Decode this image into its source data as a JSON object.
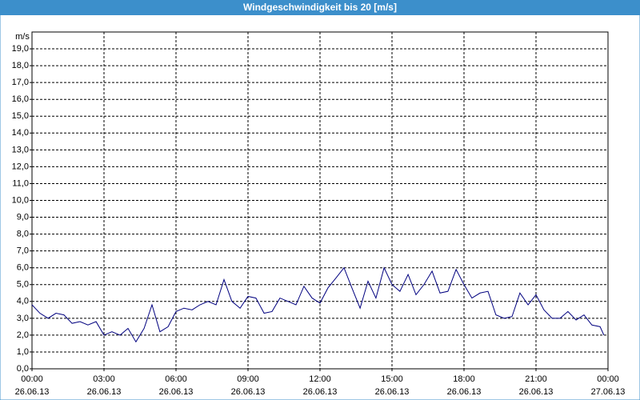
{
  "chart_data": {
    "type": "line",
    "title": "Windgeschwindigkeit bis 20 [m/s]",
    "y_label": "m/s",
    "x": [
      0,
      0.33,
      0.67,
      1,
      1.33,
      1.67,
      2,
      2.33,
      2.67,
      3,
      3.33,
      3.67,
      4,
      4.33,
      4.67,
      5,
      5.33,
      5.67,
      6,
      6.33,
      6.67,
      7,
      7.33,
      7.67,
      8,
      8.33,
      8.67,
      9,
      9.33,
      9.67,
      10,
      10.33,
      10.67,
      11,
      11.33,
      11.67,
      12,
      12.33,
      12.67,
      13,
      13.33,
      13.67,
      14,
      14.33,
      14.67,
      15,
      15.33,
      15.67,
      16,
      16.33,
      16.67,
      17,
      17.33,
      17.67,
      18,
      18.33,
      18.67,
      19,
      19.33,
      19.67,
      20,
      20.33,
      20.67,
      21,
      21.33,
      21.67,
      22,
      22.33,
      22.67,
      23,
      23.33,
      23.67,
      23.83
    ],
    "series": [
      {
        "name": "Windgeschwindigkeit",
        "color": "#00007f",
        "values": [
          3.8,
          3.3,
          3.0,
          3.3,
          3.2,
          2.7,
          2.8,
          2.6,
          2.8,
          2.0,
          2.2,
          2.0,
          2.4,
          1.6,
          2.4,
          3.8,
          2.2,
          2.5,
          3.4,
          3.6,
          3.5,
          3.8,
          4.0,
          3.8,
          5.3,
          4.0,
          3.6,
          4.3,
          4.2,
          3.3,
          3.4,
          4.2,
          4.0,
          3.8,
          4.9,
          4.2,
          3.9,
          4.8,
          5.4,
          6.0,
          4.8,
          3.6,
          5.2,
          4.2,
          6.0,
          5.0,
          4.6,
          5.6,
          4.4,
          5.0,
          5.8,
          4.5,
          4.6,
          5.9,
          5.0,
          4.2,
          4.5,
          4.6,
          3.2,
          3.0,
          3.1,
          4.5,
          3.8,
          4.4,
          3.5,
          3.0,
          3.0,
          3.4,
          2.9,
          3.2,
          2.6,
          2.5,
          2.0
        ]
      }
    ],
    "xlim": [
      0,
      24
    ],
    "xticks": [
      {
        "value": 0,
        "label": "00:00",
        "date": "26.06.13"
      },
      {
        "value": 3,
        "label": "03:00",
        "date": "26.06.13"
      },
      {
        "value": 6,
        "label": "06:00",
        "date": "26.06.13"
      },
      {
        "value": 9,
        "label": "09:00",
        "date": "26.06.13"
      },
      {
        "value": 12,
        "label": "12:00",
        "date": "26.06.13"
      },
      {
        "value": 15,
        "label": "15:00",
        "date": "26.06.13"
      },
      {
        "value": 18,
        "label": "18:00",
        "date": "26.06.13"
      },
      {
        "value": 21,
        "label": "21:00",
        "date": "26.06.13"
      },
      {
        "value": 24,
        "label": "00:00",
        "date": "27.06.13"
      }
    ],
    "ylim": [
      0,
      20
    ],
    "yticks": [
      {
        "value": 0,
        "label": "0,0"
      },
      {
        "value": 1,
        "label": "1,0"
      },
      {
        "value": 2,
        "label": "2,0"
      },
      {
        "value": 3,
        "label": "3,0"
      },
      {
        "value": 4,
        "label": "4,0"
      },
      {
        "value": 5,
        "label": "5,0"
      },
      {
        "value": 6,
        "label": "6,0"
      },
      {
        "value": 7,
        "label": "7,0"
      },
      {
        "value": 8,
        "label": "8,0"
      },
      {
        "value": 9,
        "label": "9,0"
      },
      {
        "value": 10,
        "label": "10,0"
      },
      {
        "value": 11,
        "label": "11,0"
      },
      {
        "value": 12,
        "label": "12,0"
      },
      {
        "value": 13,
        "label": "13,0"
      },
      {
        "value": 14,
        "label": "14,0"
      },
      {
        "value": 15,
        "label": "15,0"
      },
      {
        "value": 16,
        "label": "16,0"
      },
      {
        "value": 17,
        "label": "17,0"
      },
      {
        "value": 18,
        "label": "18,0"
      },
      {
        "value": 19,
        "label": "19,0"
      }
    ],
    "grid": true
  }
}
